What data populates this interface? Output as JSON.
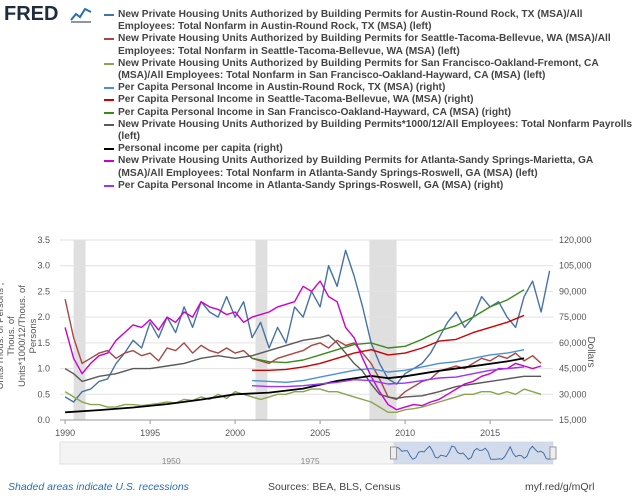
{
  "header": {
    "logo_text": "FRED",
    "legend": [
      {
        "label": "New Private Housing Units Authorized by Building Permits for Austin-Round Rock, TX (MSA)/All Employees: Total Nonfarm in Austin-Round Rock, TX (MSA) (left)",
        "color": "#4572a7"
      },
      {
        "label": "New Private Housing Units Authorized by Building Permits for Seattle-Tacoma-Bellevue, WA (MSA)/All Employees: Total Nonfarm in Seattle-Tacoma-Bellevue, WA (MSA) (left)",
        "color": "#aa4643"
      },
      {
        "label": "New Private Housing Units Authorized by Building Permits for San Francisco-Oakland-Fremont, CA (MSA)/All Employees: Total Nonfarm in San Francisco-Oakland-Hayward, CA (MSA) (left)",
        "color": "#89a54e"
      },
      {
        "label": "Per Capita Personal Income in Austin-Round Rock, TX (MSA) (right)",
        "color": "#4a90d9"
      },
      {
        "label": "Per Capita Personal Income in Seattle-Tacoma-Bellevue, WA (MSA) (right)",
        "color": "#cc0000"
      },
      {
        "label": "Per Capita Personal Income in San Francisco-Oakland-Hayward, CA (MSA) (right)",
        "color": "#3a8a1a"
      },
      {
        "label": "New Private Housing Units Authorized by Building Permits*1000/12/All Employees: Total Nonfarm Payrolls (left)",
        "color": "#595959"
      },
      {
        "label": "Personal income per capita (right)",
        "color": "#000000"
      },
      {
        "label": "New Private Housing Units Authorized by Building Permits for Atlanta-Sandy Springs-Marietta, GA (MSA)/All Employees: Total Nonfarm in Atlanta-Sandy Springs-Roswell, GA (MSA) (left)",
        "color": "#cc00cc"
      },
      {
        "label": "Per Capita Personal Income in Atlanta-Sandy Springs-Roswell, GA (MSA) (right)",
        "color": "#9933ff"
      }
    ]
  },
  "axes": {
    "left_label": "Units/Thous. of Persons , Thous. of Units*1000/12/Thous. of Persons",
    "right_label": "Dollars",
    "left_ticks": [
      "0.0",
      "0.5",
      "1.0",
      "1.5",
      "2.0",
      "2.5",
      "3.0",
      "3.5"
    ],
    "right_ticks": [
      "15,000",
      "30,000",
      "45,000",
      "60,000",
      "75,000",
      "90,000",
      "105,000",
      "120,000"
    ],
    "x_ticks": [
      "1990",
      "1995",
      "2000",
      "2005",
      "2010",
      "2015"
    ],
    "navigator_ticks": [
      "1950",
      "1975"
    ]
  },
  "footer": {
    "recession_note": "Shaded areas indicate U.S. recessions",
    "sources": "Sources: BEA, BLS, Census",
    "url": "myf.red/g/mQrl"
  },
  "chart_data": {
    "type": "line",
    "xlim": [
      1989.7,
      2018.7
    ],
    "ylim_left": [
      0,
      3.5
    ],
    "ylim_right": [
      15000,
      120000
    ],
    "grid": true,
    "recessions": [
      [
        1990.5,
        1991.2
      ],
      [
        2001.2,
        2001.9
      ],
      [
        2007.9,
        2009.5
      ]
    ],
    "series": [
      {
        "name": "Austin/Nonfarm (left)",
        "axis": "left",
        "color": "#4572a7",
        "x": [
          1990,
          1990.5,
          1991,
          1991.5,
          1992,
          1992.5,
          1993,
          1993.5,
          1994,
          1994.5,
          1995,
          1995.5,
          1996,
          1996.5,
          1997,
          1997.5,
          1998,
          1998.5,
          1999,
          1999.5,
          2000,
          2000.5,
          2001,
          2001.5,
          2002,
          2002.5,
          2003,
          2003.5,
          2004,
          2004.5,
          2005,
          2005.5,
          2006,
          2006.5,
          2007,
          2007.5,
          2008,
          2008.5,
          2009,
          2009.5,
          2010,
          2010.5,
          2011,
          2011.5,
          2012,
          2012.5,
          2013,
          2013.5,
          2014,
          2014.5,
          2015,
          2015.5,
          2016,
          2016.5,
          2017,
          2017.5,
          2018,
          2018.5
        ],
        "values": [
          0.45,
          0.35,
          0.55,
          0.6,
          0.75,
          0.8,
          1.1,
          1.3,
          1.55,
          1.4,
          1.9,
          1.6,
          2.0,
          1.7,
          2.2,
          1.8,
          2.3,
          2.1,
          2.0,
          2.4,
          2.0,
          2.3,
          1.6,
          1.9,
          1.4,
          1.8,
          1.5,
          2.2,
          2.0,
          2.5,
          2.2,
          3.0,
          2.6,
          3.3,
          2.8,
          2.2,
          1.5,
          1.1,
          0.8,
          0.7,
          0.9,
          1.0,
          1.1,
          1.3,
          1.6,
          1.9,
          2.1,
          1.8,
          2.0,
          2.4,
          2.2,
          2.3,
          2.0,
          1.8,
          2.4,
          2.7,
          2.1,
          2.9
        ]
      },
      {
        "name": "Seattle/Nonfarm (left)",
        "axis": "left",
        "color": "#aa4643",
        "x": [
          1990,
          1990.5,
          1991,
          1991.5,
          1992,
          1992.5,
          1993,
          1993.5,
          1994,
          1994.5,
          1995,
          1995.5,
          1996,
          1996.5,
          1997,
          1997.5,
          1998,
          1998.5,
          1999,
          1999.5,
          2000,
          2000.5,
          2001,
          2001.5,
          2002,
          2002.5,
          2003,
          2003.5,
          2004,
          2004.5,
          2005,
          2005.5,
          2006,
          2006.5,
          2007,
          2007.5,
          2008,
          2008.5,
          2009,
          2009.5,
          2010,
          2010.5,
          2011,
          2011.5,
          2012,
          2012.5,
          2013,
          2013.5,
          2014,
          2014.5,
          2015,
          2015.5,
          2016,
          2016.5,
          2017,
          2017.5,
          2018
        ],
        "values": [
          2.35,
          1.6,
          1.1,
          1.2,
          1.3,
          1.35,
          1.2,
          1.3,
          1.35,
          1.25,
          1.3,
          1.15,
          1.4,
          1.35,
          1.5,
          1.3,
          1.45,
          1.35,
          1.3,
          1.4,
          1.3,
          1.35,
          1.2,
          1.15,
          1.1,
          1.2,
          1.25,
          1.3,
          1.35,
          1.45,
          1.5,
          1.4,
          1.55,
          1.45,
          1.5,
          1.3,
          1.1,
          0.8,
          0.45,
          0.4,
          0.55,
          0.65,
          0.75,
          0.8,
          0.95,
          1.0,
          1.05,
          1.0,
          1.1,
          1.2,
          1.15,
          1.25,
          1.2,
          1.3,
          1.15,
          1.25,
          1.1
        ]
      },
      {
        "name": "SF/Nonfarm (left)",
        "axis": "left",
        "color": "#89a54e",
        "x": [
          1990,
          1990.5,
          1991,
          1991.5,
          1992,
          1992.5,
          1993,
          1993.5,
          1994,
          1994.5,
          1995,
          1995.5,
          1996,
          1996.5,
          1997,
          1997.5,
          1998,
          1998.5,
          1999,
          1999.5,
          2000,
          2000.5,
          2001,
          2001.5,
          2002,
          2002.5,
          2003,
          2003.5,
          2004,
          2004.5,
          2005,
          2005.5,
          2006,
          2006.5,
          2007,
          2007.5,
          2008,
          2008.5,
          2009,
          2009.5,
          2010,
          2010.5,
          2011,
          2011.5,
          2012,
          2012.5,
          2013,
          2013.5,
          2014,
          2014.5,
          2015,
          2015.5,
          2016,
          2016.5,
          2017,
          2017.5,
          2018
        ],
        "values": [
          0.55,
          0.45,
          0.35,
          0.3,
          0.3,
          0.25,
          0.25,
          0.3,
          0.3,
          0.28,
          0.3,
          0.32,
          0.35,
          0.33,
          0.4,
          0.38,
          0.45,
          0.4,
          0.5,
          0.42,
          0.55,
          0.5,
          0.45,
          0.4,
          0.45,
          0.5,
          0.5,
          0.55,
          0.55,
          0.6,
          0.6,
          0.55,
          0.55,
          0.5,
          0.45,
          0.4,
          0.35,
          0.25,
          0.15,
          0.15,
          0.2,
          0.22,
          0.25,
          0.3,
          0.35,
          0.4,
          0.45,
          0.5,
          0.5,
          0.55,
          0.55,
          0.5,
          0.55,
          0.5,
          0.6,
          0.55,
          0.5
        ]
      },
      {
        "name": "Austin income (right)",
        "axis": "right",
        "color": "#4a90d9",
        "x": [
          2001,
          2002,
          2003,
          2004,
          2005,
          2006,
          2007,
          2008,
          2009,
          2010,
          2011,
          2012,
          2013,
          2014,
          2015,
          2016,
          2017
        ],
        "values": [
          38000,
          37500,
          37000,
          38000,
          40000,
          42000,
          44000,
          45000,
          43000,
          44000,
          46000,
          48000,
          49000,
          51000,
          53000,
          54000,
          56000
        ]
      },
      {
        "name": "Seattle income (right)",
        "axis": "right",
        "color": "#cc0000",
        "x": [
          2001,
          2002,
          2003,
          2004,
          2005,
          2006,
          2007,
          2008,
          2009,
          2010,
          2011,
          2012,
          2013,
          2014,
          2015,
          2016,
          2017
        ],
        "values": [
          44000,
          44000,
          44500,
          46000,
          48000,
          51000,
          54000,
          56000,
          53000,
          54000,
          57000,
          61000,
          62000,
          66000,
          69000,
          72000,
          76000
        ]
      },
      {
        "name": "SF income (right)",
        "axis": "right",
        "color": "#3a8a1a",
        "x": [
          2001,
          2002,
          2003,
          2004,
          2005,
          2006,
          2007,
          2008,
          2009,
          2010,
          2011,
          2012,
          2013,
          2014,
          2015,
          2016,
          2017
        ],
        "values": [
          51000,
          49000,
          48500,
          50000,
          53000,
          56000,
          59000,
          60000,
          57000,
          58000,
          62000,
          67000,
          70000,
          75000,
          81000,
          85000,
          91000
        ]
      },
      {
        "name": "US permits*1000/12/payrolls (left)",
        "axis": "left",
        "color": "#595959",
        "x": [
          1990,
          1990.5,
          1991,
          1991.5,
          1992,
          1993,
          1994,
          1995,
          1996,
          1997,
          1998,
          1999,
          2000,
          2001,
          2002,
          2003,
          2004,
          2005,
          2005.5,
          2006,
          2006.5,
          2007,
          2007.5,
          2008,
          2008.5,
          2009,
          2009.5,
          2010,
          2011,
          2012,
          2013,
          2014,
          2015,
          2016,
          2017,
          2018
        ],
        "values": [
          1.0,
          0.9,
          0.75,
          0.8,
          0.85,
          0.9,
          1.0,
          1.0,
          1.05,
          1.1,
          1.2,
          1.25,
          1.2,
          1.25,
          1.35,
          1.45,
          1.55,
          1.6,
          1.65,
          1.5,
          1.3,
          1.1,
          0.95,
          0.7,
          0.5,
          0.45,
          0.42,
          0.45,
          0.47,
          0.55,
          0.65,
          0.7,
          0.75,
          0.8,
          0.85,
          0.85
        ]
      },
      {
        "name": "Personal income per capita (right)",
        "axis": "right",
        "color": "#000000",
        "x": [
          1990,
          1992,
          1994,
          1996,
          1998,
          2000,
          2002,
          2004,
          2006,
          2008,
          2009,
          2010,
          2012,
          2014,
          2016,
          2017
        ],
        "values": [
          19500,
          20800,
          22300,
          24300,
          26900,
          30000,
          31000,
          33300,
          37800,
          40700,
          39400,
          40500,
          43700,
          46400,
          49200,
          51000
        ]
      },
      {
        "name": "Atlanta/Nonfarm (left)",
        "axis": "left",
        "color": "#cc00cc",
        "x": [
          1990,
          1990.5,
          1991,
          1991.5,
          1992,
          1992.5,
          1993,
          1993.5,
          1994,
          1994.5,
          1995,
          1995.5,
          1996,
          1996.5,
          1997,
          1997.5,
          1998,
          1998.5,
          1999,
          1999.5,
          2000,
          2000.5,
          2001,
          2001.5,
          2002,
          2002.5,
          2003,
          2003.5,
          2004,
          2004.5,
          2005,
          2005.5,
          2006,
          2006.5,
          2007,
          2007.5,
          2008,
          2008.5,
          2009,
          2009.5,
          2010,
          2010.5,
          2011,
          2011.5,
          2012,
          2012.5,
          2013,
          2013.5,
          2014,
          2014.5,
          2015,
          2015.5,
          2016,
          2016.5,
          2017,
          2017.5,
          2018
        ],
        "values": [
          1.8,
          1.2,
          0.9,
          1.1,
          1.25,
          1.3,
          1.55,
          1.7,
          1.85,
          1.8,
          1.95,
          1.75,
          2.0,
          1.9,
          2.1,
          2.0,
          2.3,
          2.2,
          2.15,
          2.05,
          2.1,
          1.9,
          2.0,
          2.05,
          2.1,
          2.2,
          2.25,
          2.3,
          2.6,
          2.5,
          2.7,
          2.4,
          2.3,
          1.8,
          1.6,
          1.2,
          0.85,
          0.55,
          0.3,
          0.2,
          0.25,
          0.3,
          0.28,
          0.35,
          0.4,
          0.5,
          0.6,
          0.7,
          0.75,
          0.85,
          0.9,
          1.0,
          1.0,
          1.1,
          1.05,
          1.0,
          1.05
        ]
      },
      {
        "name": "Atlanta income (right)",
        "axis": "right",
        "color": "#9933ff",
        "x": [
          2001,
          2002,
          2003,
          2004,
          2005,
          2006,
          2007,
          2008,
          2009,
          2010,
          2011,
          2012,
          2013,
          2014,
          2015,
          2016,
          2017
        ],
        "values": [
          35000,
          34500,
          34500,
          35000,
          36000,
          37000,
          38500,
          38000,
          36000,
          36500,
          38000,
          39500,
          40000,
          42000,
          44000,
          45000,
          46000
        ]
      }
    ]
  }
}
